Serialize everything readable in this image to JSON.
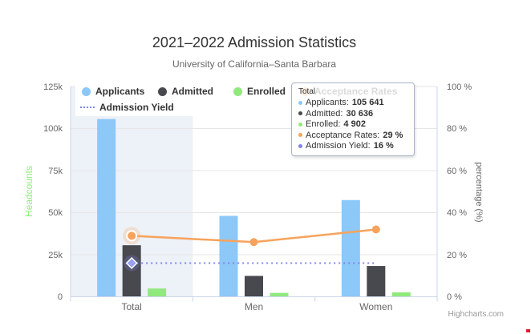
{
  "title": "2021–2022 Admission Statistics",
  "subtitle": "University of California–Santa Barbara",
  "credits": "Highcharts.com",
  "colors": {
    "applicants": "#8cc8f8",
    "admitted": "#48484f",
    "enrolled": "#90e97c",
    "acceptance": "#f7a35c",
    "yield": "#8085e9",
    "yield_marker_fill": "#9aa0f2",
    "axis_line": "#ccd6eb",
    "grid": "#e6e6e6",
    "band": "#edf1f8",
    "text": "#333333",
    "muted": "#666666",
    "credit": "#999999",
    "left_axis_title": "#90ed7d"
  },
  "legend": {
    "items": [
      {
        "label": "Applicants",
        "color": "#8cc8f8",
        "marker": "circle"
      },
      {
        "label": "Admitted",
        "color": "#48484f",
        "marker": "circle"
      },
      {
        "label": "Enrolled",
        "color": "#90e97c",
        "marker": "circle"
      },
      {
        "label": "Acceptance Rates",
        "color": "#f7a35c",
        "marker": "circle",
        "obscured_by_tooltip": true
      },
      {
        "label": "Admission Yield",
        "color": "#8085e9",
        "marker": "dotted-line"
      }
    ]
  },
  "tooltip": {
    "header": "Total",
    "rows": [
      {
        "label": "Applicants:",
        "value": "105 641",
        "color": "#8cc8f8"
      },
      {
        "label": "Admitted:",
        "value": "30 636",
        "color": "#48484f"
      },
      {
        "label": "Enrolled:",
        "value": "4 902",
        "color": "#90e97c"
      },
      {
        "label": "Acceptance Rates:",
        "value": "29 %",
        "color": "#f7a35c"
      },
      {
        "label": "Admission Yield:",
        "value": "16 %",
        "color": "#8085e9"
      }
    ]
  },
  "x_axis": {
    "categories": [
      "Total",
      "Men",
      "Women"
    ]
  },
  "y_axis_left": {
    "title": "Headcounts",
    "ticks": [
      "0",
      "25k",
      "50k",
      "75k",
      "100k",
      "125k"
    ]
  },
  "y_axis_right": {
    "title": "percentage (%)",
    "ticks": [
      "0 %",
      "20 %",
      "40 %",
      "60 %",
      "80 %",
      "100 %"
    ]
  },
  "chart_data": {
    "type": "bar+line combo",
    "title": "2021–2022 Admission Statistics",
    "subtitle": "University of California–Santa Barbara",
    "categories": [
      "Total",
      "Men",
      "Women"
    ],
    "series": [
      {
        "name": "Applicants",
        "type": "bar",
        "axis": "left",
        "color": "#8cc8f8",
        "values": [
          105641,
          48100,
          57500
        ]
      },
      {
        "name": "Admitted",
        "type": "bar",
        "axis": "left",
        "color": "#48484f",
        "values": [
          30636,
          12400,
          18300
        ]
      },
      {
        "name": "Enrolled",
        "type": "bar",
        "axis": "left",
        "color": "#90e97c",
        "values": [
          4902,
          2300,
          2600
        ]
      },
      {
        "name": "Acceptance Rates",
        "type": "line",
        "axis": "right",
        "color": "#f7a35c",
        "values": [
          29,
          26,
          32
        ]
      },
      {
        "name": "Admission Yield",
        "type": "line-dotted",
        "axis": "right",
        "color": "#8085e9",
        "values": [
          16,
          16,
          16
        ]
      }
    ],
    "ylabel_left": "Headcounts",
    "ylabel_right": "percentage (%)",
    "ylim_left": [
      0,
      125000
    ],
    "ylim_right": [
      0,
      100
    ],
    "grid": true,
    "legend_position": "top-left-inside",
    "hovered_category": "Total",
    "tooltip_visible_for": "Total"
  }
}
